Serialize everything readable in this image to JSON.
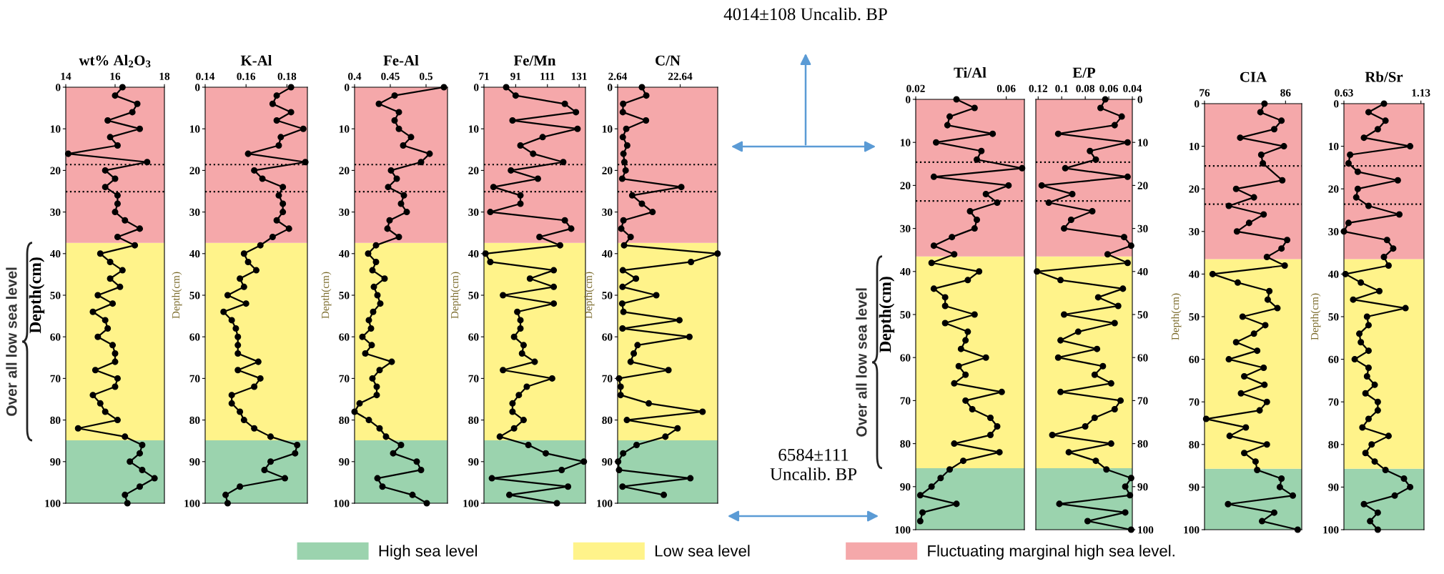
{
  "chart_data": [
    {
      "type": "line",
      "orientation": "horizontal",
      "title": "wt% Al$_{2}$O$_{3}$",
      "ylabel": "Depth(cm)",
      "annotations": [
        "Over all low sea level"
      ],
      "color": "#000000",
      "marker": "circle",
      "line_style": "solid",
      "legend": "bottom",
      "x": [
        0,
        2,
        4,
        6,
        8,
        10,
        12,
        14,
        16,
        18,
        20,
        22,
        24,
        26,
        28,
        30,
        32,
        34,
        36,
        38,
        40,
        42,
        44,
        46,
        48,
        50,
        52,
        54,
        56,
        58,
        60,
        62,
        64,
        66,
        68,
        70,
        72,
        74,
        76,
        78,
        80,
        82,
        84,
        86,
        88,
        90,
        92,
        94,
        96,
        98,
        100
      ],
      "values": [
        16.3,
        16.0,
        16.9,
        16.7,
        15.7,
        17.0,
        15.8,
        16.1,
        14.1,
        17.3,
        15.6,
        16.0,
        15.6,
        16.1,
        16.1,
        16.0,
        16.4,
        17.0,
        16.1,
        16.8,
        15.4,
        15.8,
        16.3,
        15.8,
        16.2,
        15.3,
        15.9,
        15.1,
        15.6,
        15.7,
        15.3,
        15.9,
        16.0,
        16.0,
        15.2,
        16.1,
        16.0,
        15.1,
        15.4,
        15.6,
        16.1,
        14.5,
        16.4,
        17.1,
        17.0,
        16.6,
        17.1,
        17.6,
        17.0,
        16.4,
        16.5
      ],
      "xlim": [
        14,
        18
      ],
      "xticks": [
        14,
        16,
        18
      ],
      "ylim": [
        100,
        0
      ],
      "yticks": [
        0,
        10,
        20,
        30,
        40,
        50,
        60,
        70,
        80,
        90,
        100
      ],
      "bands": [
        {
          "axis": "y",
          "from": 84.9,
          "to": 100,
          "color": "#9bd3ae",
          "label": "High sea level"
        },
        {
          "axis": "y",
          "from": 37.4,
          "to": 84.9,
          "color": "#fff38a",
          "label": "Low sea level"
        },
        {
          "axis": "y",
          "from": 0,
          "to": 37.4,
          "color": "#f5a8aa",
          "label": "Fluctuating marginal high sea level."
        }
      ],
      "ref_lines": [
        {
          "axis": "y",
          "value": 18.6,
          "line_style": "dotted",
          "color": "#000000"
        },
        {
          "axis": "y",
          "value": 25.1,
          "line_style": "dotted",
          "color": "#000000"
        }
      ]
    },
    {
      "type": "line",
      "orientation": "horizontal",
      "title": "K-Al",
      "ylabel": "Depth(cm)",
      "color": "#000000",
      "marker": "circle",
      "line_style": "solid",
      "x": [
        0,
        2,
        4,
        6,
        8,
        10,
        12,
        14,
        16,
        18,
        20,
        22,
        24,
        26,
        28,
        30,
        32,
        34,
        36,
        38,
        40,
        42,
        44,
        46,
        48,
        50,
        52,
        54,
        56,
        58,
        60,
        62,
        64,
        66,
        68,
        70,
        72,
        74,
        76,
        78,
        80,
        82,
        84,
        86,
        88,
        90,
        92,
        94,
        96,
        98,
        100
      ],
      "values": [
        0.182,
        0.175,
        0.173,
        0.182,
        0.175,
        0.188,
        0.177,
        0.176,
        0.161,
        0.189,
        0.164,
        0.168,
        0.178,
        0.176,
        0.178,
        0.178,
        0.175,
        0.181,
        0.173,
        0.167,
        0.159,
        0.161,
        0.165,
        0.157,
        0.159,
        0.151,
        0.16,
        0.149,
        0.153,
        0.155,
        0.156,
        0.156,
        0.156,
        0.166,
        0.156,
        0.167,
        0.164,
        0.153,
        0.153,
        0.157,
        0.159,
        0.164,
        0.172,
        0.185,
        0.184,
        0.172,
        0.169,
        0.179,
        0.157,
        0.15,
        0.151
      ],
      "xlim": [
        0.14,
        0.19
      ],
      "xticks": [
        0.14,
        0.16,
        0.18
      ],
      "ylim": [
        100,
        0
      ],
      "yticks": [
        0,
        10,
        20,
        30,
        40,
        50,
        60,
        70,
        80,
        90,
        100
      ],
      "bands": [
        {
          "axis": "y",
          "from": 84.9,
          "to": 100,
          "color": "#9bd3ae"
        },
        {
          "axis": "y",
          "from": 37.4,
          "to": 84.9,
          "color": "#fff38a"
        },
        {
          "axis": "y",
          "from": 0,
          "to": 37.4,
          "color": "#f5a8aa"
        }
      ],
      "ref_lines": [
        {
          "axis": "y",
          "value": 18.6,
          "line_style": "dotted",
          "color": "#000000"
        },
        {
          "axis": "y",
          "value": 25.1,
          "line_style": "dotted",
          "color": "#000000"
        }
      ]
    },
    {
      "type": "line",
      "orientation": "horizontal",
      "title": "Fe-Al",
      "ylabel": "Depth(cm)",
      "color": "#000000",
      "marker": "circle",
      "line_style": "solid",
      "x": [
        0,
        2,
        4,
        6,
        8,
        10,
        12,
        14,
        16,
        18,
        20,
        22,
        24,
        26,
        28,
        30,
        32,
        34,
        36,
        38,
        40,
        42,
        44,
        46,
        48,
        50,
        52,
        54,
        56,
        58,
        60,
        62,
        64,
        66,
        68,
        70,
        72,
        74,
        76,
        78,
        80,
        82,
        84,
        86,
        88,
        90,
        92,
        94,
        96,
        98,
        100
      ],
      "values": [
        0.525,
        0.456,
        0.434,
        0.462,
        0.456,
        0.462,
        0.479,
        0.468,
        0.505,
        0.493,
        0.451,
        0.459,
        0.447,
        0.469,
        0.465,
        0.473,
        0.449,
        0.446,
        0.462,
        0.43,
        0.419,
        0.43,
        0.425,
        0.442,
        0.427,
        0.432,
        0.436,
        0.426,
        0.42,
        0.423,
        0.411,
        0.424,
        0.415,
        0.452,
        0.435,
        0.425,
        0.431,
        0.431,
        0.407,
        0.4,
        0.42,
        0.435,
        0.444,
        0.465,
        0.454,
        0.487,
        0.493,
        0.432,
        0.439,
        0.481,
        0.501
      ],
      "xlim": [
        0.4,
        0.53
      ],
      "xticks": [
        0.4,
        0.45,
        0.5
      ],
      "ylim": [
        100,
        0
      ],
      "yticks": [
        0,
        10,
        20,
        30,
        40,
        50,
        60,
        70,
        80,
        90,
        100
      ],
      "bands": [
        {
          "axis": "y",
          "from": 84.9,
          "to": 100,
          "color": "#9bd3ae"
        },
        {
          "axis": "y",
          "from": 37.4,
          "to": 84.9,
          "color": "#fff38a"
        },
        {
          "axis": "y",
          "from": 0,
          "to": 37.4,
          "color": "#f5a8aa"
        }
      ],
      "ref_lines": [
        {
          "axis": "y",
          "value": 18.6,
          "line_style": "dotted",
          "color": "#000000"
        },
        {
          "axis": "y",
          "value": 25.1,
          "line_style": "dotted",
          "color": "#000000"
        }
      ]
    },
    {
      "type": "line",
      "orientation": "horizontal",
      "title": "Fe/Mn",
      "ylabel": "Depth(cm)",
      "color": "#000000",
      "marker": "circle",
      "line_style": "solid",
      "x": [
        0,
        2,
        4,
        6,
        8,
        10,
        12,
        14,
        16,
        18,
        20,
        22,
        24,
        26,
        28,
        30,
        32,
        34,
        36,
        38,
        40,
        42,
        44,
        46,
        48,
        50,
        52,
        54,
        56,
        58,
        60,
        62,
        64,
        66,
        68,
        70,
        72,
        74,
        76,
        78,
        80,
        82,
        84,
        86,
        88,
        90,
        92,
        94,
        96,
        98,
        100
      ],
      "values": [
        85,
        91,
        122,
        129,
        89,
        130,
        108,
        94,
        102,
        121,
        88,
        105,
        77,
        94,
        94,
        75,
        122,
        126,
        106,
        119,
        72,
        75,
        115,
        100,
        115,
        83,
        115,
        92,
        94,
        94,
        90,
        96,
        95,
        103,
        83,
        114,
        98,
        93,
        89,
        89,
        96,
        90,
        81,
        99,
        110,
        134,
        120,
        76,
        124,
        87,
        117
      ],
      "xlim": [
        71,
        135
      ],
      "xticks": [
        71,
        91,
        111,
        131
      ],
      "ylim": [
        100,
        0
      ],
      "yticks": [
        0,
        10,
        20,
        30,
        40,
        50,
        60,
        70,
        80,
        90,
        100
      ],
      "bands": [
        {
          "axis": "y",
          "from": 84.9,
          "to": 100,
          "color": "#9bd3ae"
        },
        {
          "axis": "y",
          "from": 37.4,
          "to": 84.9,
          "color": "#fff38a"
        },
        {
          "axis": "y",
          "from": 0,
          "to": 37.4,
          "color": "#f5a8aa"
        }
      ],
      "ref_lines": [
        {
          "axis": "y",
          "value": 18.6,
          "line_style": "dotted",
          "color": "#000000"
        },
        {
          "axis": "y",
          "value": 25.1,
          "line_style": "dotted",
          "color": "#000000"
        }
      ]
    },
    {
      "type": "line",
      "orientation": "horizontal",
      "title": "C/N",
      "ylabel": "Depth(cm)",
      "color": "#000000",
      "marker": "circle",
      "line_style": "solid",
      "x": [
        0,
        2,
        4,
        6,
        8,
        10,
        12,
        14,
        16,
        18,
        20,
        22,
        24,
        26,
        28,
        30,
        32,
        34,
        36,
        38,
        40,
        42,
        44,
        46,
        48,
        50,
        52,
        54,
        56,
        58,
        60,
        62,
        64,
        66,
        68,
        70,
        72,
        74,
        76,
        78,
        80,
        82,
        84,
        86,
        88,
        90,
        92,
        94,
        96,
        98
      ],
      "values": [
        10.4,
        11.8,
        4.4,
        4.3,
        11.7,
        5.4,
        4.3,
        5.7,
        4.5,
        4.8,
        5.2,
        4.1,
        23.0,
        7.3,
        10.4,
        13.8,
        4.5,
        3.8,
        6.8,
        4.7,
        34.6,
        26.1,
        4.3,
        8.5,
        4.2,
        15.0,
        4.1,
        4.5,
        22.4,
        4.2,
        25.6,
        9.0,
        7.8,
        6.8,
        18.9,
        3.1,
        3.6,
        3.6,
        12.6,
        29.8,
        5.6,
        21.8,
        17.9,
        8.7,
        4.4,
        2.8,
        3.1,
        25.9,
        4.2,
        17.4
      ],
      "xlim": [
        2.64,
        34.64
      ],
      "xticks": [
        2.64,
        22.64
      ],
      "ylim": [
        100,
        0
      ],
      "yticks": [
        0,
        10,
        20,
        30,
        40,
        50,
        60,
        70,
        80,
        90,
        100
      ],
      "bands": [
        {
          "axis": "y",
          "from": 84.9,
          "to": 100,
          "color": "#9bd3ae"
        },
        {
          "axis": "y",
          "from": 37.4,
          "to": 84.9,
          "color": "#fff38a"
        },
        {
          "axis": "y",
          "from": 0,
          "to": 37.4,
          "color": "#f5a8aa"
        }
      ],
      "ref_lines": [
        {
          "axis": "y",
          "value": 18.6,
          "line_style": "dotted",
          "color": "#000000"
        },
        {
          "axis": "y",
          "value": 25.1,
          "line_style": "dotted",
          "color": "#000000"
        }
      ]
    },
    {
      "type": "line",
      "orientation": "horizontal",
      "title": "Ti/Al",
      "ylabel": "Depth(cm)",
      "annotations": [
        "Over all low sea level"
      ],
      "color": "#000000",
      "marker": "circle",
      "line_style": "solid",
      "x": [
        0,
        2,
        4,
        6,
        8,
        10,
        12,
        14,
        16,
        18,
        20,
        22,
        24,
        26,
        28,
        30,
        32,
        34,
        36,
        38,
        40,
        42,
        44,
        46,
        48,
        50,
        52,
        54,
        56,
        58,
        60,
        62,
        64,
        66,
        68,
        70,
        72,
        74,
        76,
        78,
        80,
        82,
        84,
        86,
        88,
        90,
        92,
        94,
        96,
        98
      ],
      "values": [
        0.038,
        0.046,
        0.035,
        0.034,
        0.054,
        0.029,
        0.049,
        0.047,
        0.067,
        0.028,
        0.061,
        0.051,
        0.056,
        0.044,
        0.047,
        0.046,
        0.036,
        0.028,
        0.037,
        0.027,
        0.048,
        0.043,
        0.028,
        0.033,
        0.033,
        0.046,
        0.033,
        0.043,
        0.042,
        0.04,
        0.051,
        0.039,
        0.042,
        0.037,
        0.058,
        0.042,
        0.045,
        0.053,
        0.056,
        0.053,
        0.037,
        0.057,
        0.041,
        0.035,
        0.031,
        0.027,
        0.022,
        0.038,
        0.023,
        0.022
      ],
      "xlim": [
        0.02,
        0.068
      ],
      "xticks": [
        0.02,
        0.06
      ],
      "ylim": [
        100,
        0
      ],
      "yticks": [
        0,
        10,
        20,
        30,
        40,
        50,
        60,
        70,
        80,
        90,
        100
      ],
      "bands": [
        {
          "axis": "y",
          "from": 85.7,
          "to": 100,
          "color": "#9bd3ae"
        },
        {
          "axis": "y",
          "from": 36.5,
          "to": 85.7,
          "color": "#fff38a"
        },
        {
          "axis": "y",
          "from": 0,
          "to": 36.5,
          "color": "#f5a8aa"
        }
      ],
      "ref_lines": [
        {
          "axis": "y",
          "value": 14.6,
          "line_style": "dotted",
          "color": "#000000"
        },
        {
          "axis": "y",
          "value": 23.6,
          "line_style": "dotted",
          "color": "#000000"
        }
      ]
    },
    {
      "type": "line",
      "orientation": "horizontal",
      "title": "E/P",
      "color": "#000000",
      "marker": "circle",
      "line_style": "solid",
      "x": [
        0,
        2,
        4,
        6,
        8,
        10,
        12,
        14,
        16,
        18,
        20,
        22,
        24,
        26,
        28,
        30,
        32,
        34,
        36,
        38,
        40,
        42,
        44,
        46,
        48,
        50,
        52,
        54,
        56,
        58,
        60,
        62,
        64,
        66,
        68,
        70,
        72,
        74,
        76,
        78,
        80,
        82,
        84,
        86,
        88,
        90,
        92,
        94,
        96,
        98,
        100
      ],
      "values": [
        0.063,
        0.067,
        0.049,
        0.055,
        0.103,
        0.044,
        0.076,
        0.071,
        0.097,
        0.044,
        0.117,
        0.091,
        0.111,
        0.074,
        0.092,
        0.098,
        0.047,
        0.041,
        0.061,
        0.044,
        0.121,
        0.101,
        0.048,
        0.069,
        0.052,
        0.098,
        0.055,
        0.086,
        0.101,
        0.07,
        0.103,
        0.065,
        0.072,
        0.058,
        0.101,
        0.05,
        0.055,
        0.072,
        0.08,
        0.108,
        0.058,
        0.094,
        0.071,
        0.062,
        0.041,
        0.046,
        0.042,
        0.102,
        0.046,
        0.078,
        0.041
      ],
      "xlim": [
        0.122,
        0.04
      ],
      "xticks": [
        0.12,
        0.1,
        0.08,
        0.06,
        0.04
      ],
      "ylim": [
        100,
        0
      ],
      "yticks": [
        0,
        10,
        20,
        30,
        40,
        50,
        60,
        70,
        80,
        90,
        100
      ],
      "bands": [
        {
          "axis": "y",
          "from": 85.7,
          "to": 100,
          "color": "#9bd3ae"
        },
        {
          "axis": "y",
          "from": 36.5,
          "to": 85.7,
          "color": "#fff38a"
        },
        {
          "axis": "y",
          "from": 0,
          "to": 36.5,
          "color": "#f5a8aa"
        }
      ],
      "ref_lines": [
        {
          "axis": "y",
          "value": 14.6,
          "line_style": "dotted",
          "color": "#000000"
        },
        {
          "axis": "y",
          "value": 23.6,
          "line_style": "dotted",
          "color": "#000000"
        }
      ]
    },
    {
      "type": "line",
      "orientation": "horizontal",
      "title": "CIA",
      "ylabel": "Depth(cm)",
      "color": "#000000",
      "marker": "circle",
      "line_style": "solid",
      "x": [
        0,
        2,
        4,
        6,
        8,
        10,
        12,
        14,
        18,
        20,
        22,
        24,
        26,
        28,
        30,
        32,
        34,
        36,
        38,
        40,
        42,
        44,
        46,
        48,
        50,
        52,
        54,
        56,
        58,
        60,
        62,
        64,
        66,
        68,
        70,
        72,
        74,
        76,
        78,
        80,
        82,
        84,
        86,
        88,
        90,
        92,
        94,
        96,
        98,
        100
      ],
      "values": [
        83.4,
        82.9,
        85.5,
        84.6,
        80.4,
        85.8,
        83.0,
        83.2,
        85.6,
        79.9,
        82.1,
        79.0,
        83.3,
        81.5,
        80.0,
        86.2,
        85.5,
        83.7,
        85.9,
        77.0,
        80.1,
        84.0,
        83.8,
        85.0,
        80.7,
        83.5,
        82.1,
        79.9,
        82.5,
        79.0,
        83.3,
        80.9,
        83.4,
        80.5,
        83.7,
        82.8,
        76.2,
        81.1,
        79.1,
        83.7,
        80.9,
        82.3,
        82.5,
        85.5,
        85.3,
        86.9,
        78.9,
        84.6,
        83.1,
        87.5
      ],
      "xlim": [
        76,
        88
      ],
      "xticks": [
        76,
        86
      ],
      "ylim": [
        100,
        0
      ],
      "yticks": [
        0,
        10,
        20,
        30,
        40,
        50,
        60,
        70,
        80,
        90,
        100
      ],
      "bands": [
        {
          "axis": "y",
          "from": 85.7,
          "to": 100,
          "color": "#9bd3ae"
        },
        {
          "axis": "y",
          "from": 36.5,
          "to": 85.7,
          "color": "#fff38a"
        },
        {
          "axis": "y",
          "from": 0,
          "to": 36.5,
          "color": "#f5a8aa"
        }
      ],
      "ref_lines": [
        {
          "axis": "y",
          "value": 14.6,
          "line_style": "dotted",
          "color": "#000000"
        },
        {
          "axis": "y",
          "value": 23.6,
          "line_style": "dotted",
          "color": "#000000"
        }
      ]
    },
    {
      "type": "line",
      "orientation": "horizontal",
      "title": "Rb/Sr",
      "ylabel": "Depth(cm)",
      "color": "#000000",
      "marker": "circle",
      "line_style": "solid",
      "x": [
        0,
        2,
        4,
        6,
        8,
        10,
        12,
        14,
        16,
        18,
        20,
        22,
        24,
        26,
        28,
        30,
        32,
        34,
        36,
        38,
        40,
        42,
        44,
        46,
        48,
        50,
        52,
        54,
        56,
        58,
        60,
        62,
        64,
        66,
        68,
        70,
        72,
        74,
        76,
        78,
        80,
        82,
        84,
        86,
        88,
        90,
        92,
        94,
        96,
        98,
        100
      ],
      "values": [
        0.89,
        0.79,
        0.9,
        0.85,
        0.76,
        1.06,
        0.67,
        0.66,
        0.72,
        0.98,
        0.72,
        0.71,
        0.79,
        0.99,
        0.66,
        0.63,
        0.91,
        0.95,
        0.89,
        0.92,
        0.64,
        0.74,
        0.86,
        0.69,
        1.03,
        0.78,
        0.79,
        0.73,
        0.74,
        0.79,
        0.7,
        0.79,
        0.78,
        0.83,
        0.77,
        0.85,
        0.85,
        0.79,
        0.75,
        0.92,
        0.81,
        0.77,
        0.83,
        0.9,
        1.02,
        1.06,
        0.96,
        0.76,
        0.85,
        0.8,
        0.85
      ],
      "xlim": [
        0.63,
        1.15
      ],
      "xticks": [
        0.63,
        1.13
      ],
      "ylim": [
        100,
        0
      ],
      "yticks": [
        0,
        10,
        20,
        30,
        40,
        50,
        60,
        70,
        80,
        90,
        100
      ],
      "bands": [
        {
          "axis": "y",
          "from": 85.7,
          "to": 100,
          "color": "#9bd3ae"
        },
        {
          "axis": "y",
          "from": 36.5,
          "to": 85.7,
          "color": "#fff38a"
        },
        {
          "axis": "y",
          "from": 0,
          "to": 36.5,
          "color": "#f5a8aa"
        }
      ],
      "ref_lines": [
        {
          "axis": "y",
          "value": 14.6,
          "line_style": "dotted",
          "color": "#000000"
        },
        {
          "axis": "y",
          "value": 23.6,
          "line_style": "dotted",
          "color": "#000000"
        }
      ]
    },
    {
      "type": "other",
      "annotations": [
        "4014±108 Uncalib. BP",
        "6584±111 Uncalib. BP"
      ]
    }
  ]
}
